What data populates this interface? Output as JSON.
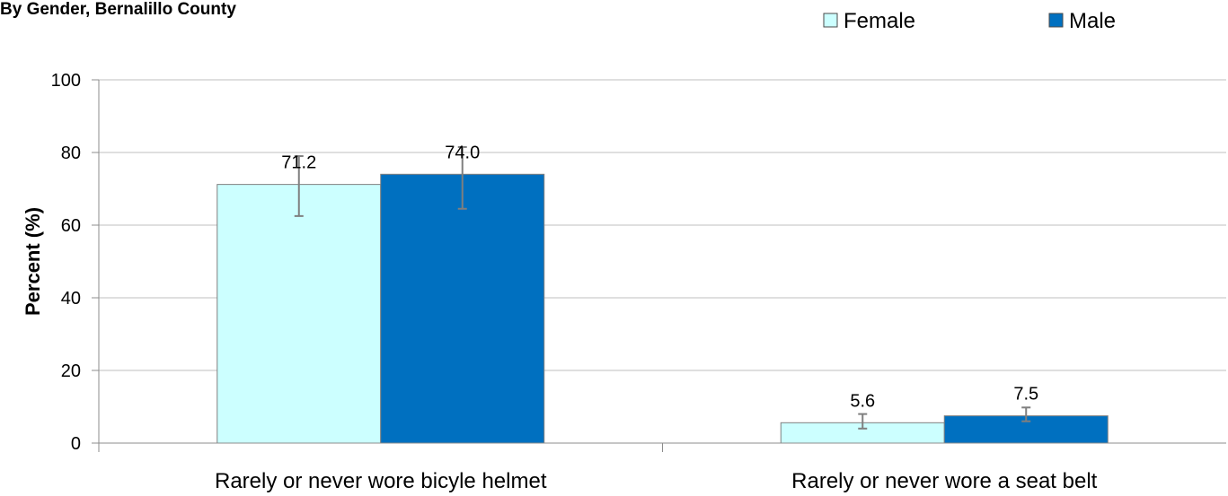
{
  "chart_data": {
    "type": "bar",
    "title": "By Gender, Bernalillo County",
    "ylabel": "Percent (%)",
    "xlabel": "",
    "ylim": [
      0,
      100
    ],
    "yticks": [
      0,
      20,
      40,
      60,
      80,
      100
    ],
    "ytick_labels": [
      "0",
      "20",
      "40",
      "60",
      "80",
      "100"
    ],
    "grid": true,
    "legend_position": "top-right",
    "categories": [
      "Rarely or never wore bicyle helmet",
      "Rarely or never wore a seat belt"
    ],
    "series": [
      {
        "name": "Female",
        "color": "#ccffff",
        "values": [
          71.2,
          5.6
        ],
        "labels": [
          "71.2",
          "5.6"
        ],
        "error_low": [
          62.5,
          4.0
        ],
        "error_high": [
          79.0,
          8.0
        ]
      },
      {
        "name": "Male",
        "color": "#0070c0",
        "values": [
          74.0,
          7.5
        ],
        "labels": [
          "74.0",
          "7.5"
        ],
        "error_low": [
          64.5,
          6.0
        ],
        "error_high": [
          81.5,
          9.8
        ]
      }
    ]
  }
}
